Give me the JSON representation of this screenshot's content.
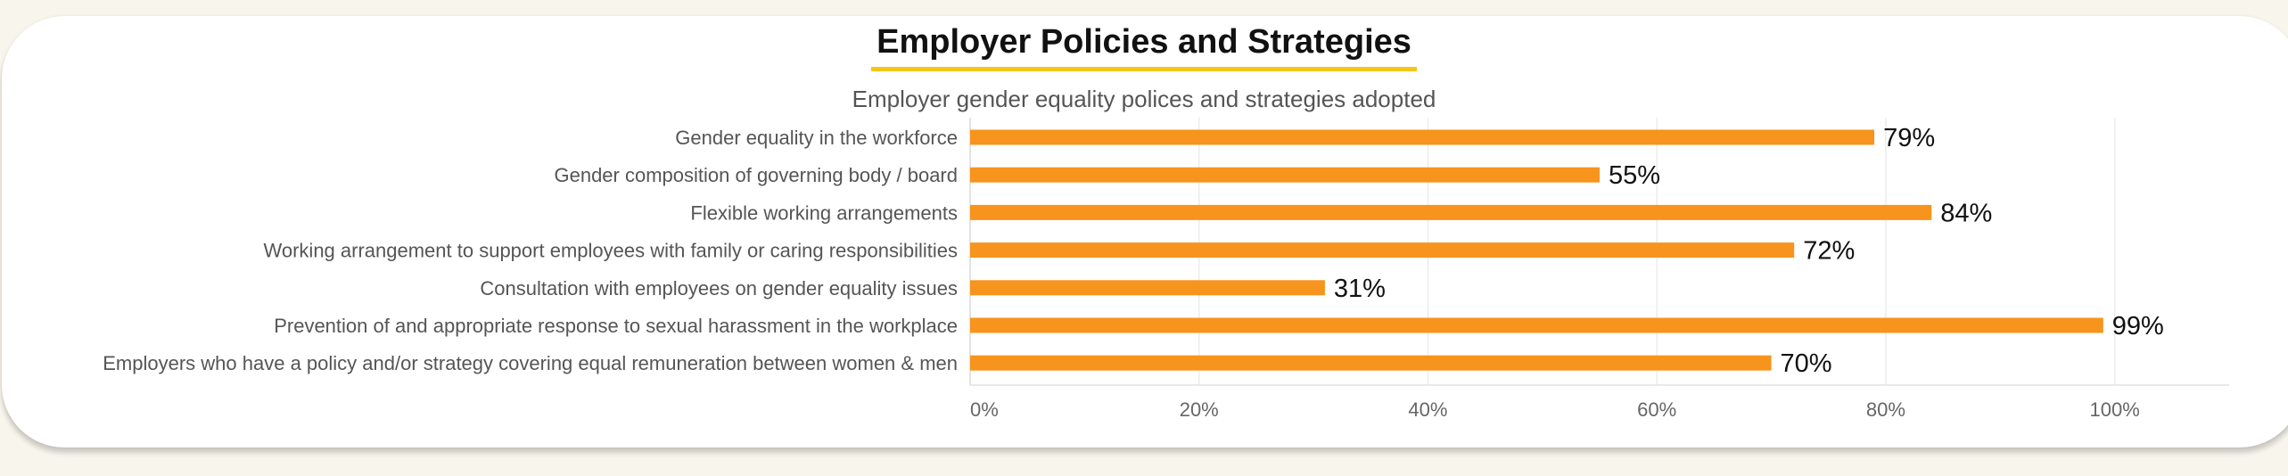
{
  "header": {
    "title": "Employer Policies and Strategies"
  },
  "chart_data": {
    "type": "bar",
    "orientation": "horizontal",
    "title": "Employer gender equality polices and strategies adopted",
    "categories": [
      "Gender equality in the workforce",
      "Gender composition of governing body / board",
      "Flexible working arrangements",
      "Working arrangement to support employees with family or caring responsibilities",
      "Consultation with employees on gender equality issues",
      "Prevention of and appropriate response to sexual harassment in the workplace",
      "Employers who have a policy and/or strategy covering equal remuneration between women & men"
    ],
    "values": [
      79,
      55,
      84,
      72,
      31,
      99,
      70
    ],
    "data_labels": [
      "79%",
      "55%",
      "84%",
      "72%",
      "31%",
      "99%",
      "70%"
    ],
    "xlim": [
      0,
      110
    ],
    "xticks": [
      0,
      20,
      40,
      60,
      80,
      100
    ],
    "xtick_labels": [
      "0%",
      "20%",
      "40%",
      "60%",
      "80%",
      "100%"
    ],
    "grid": true,
    "legend": "none",
    "colors": {
      "bar": "#f7941d",
      "grid": "#ececec",
      "label_text": "#555555",
      "title_underline": "#f5c518"
    }
  }
}
